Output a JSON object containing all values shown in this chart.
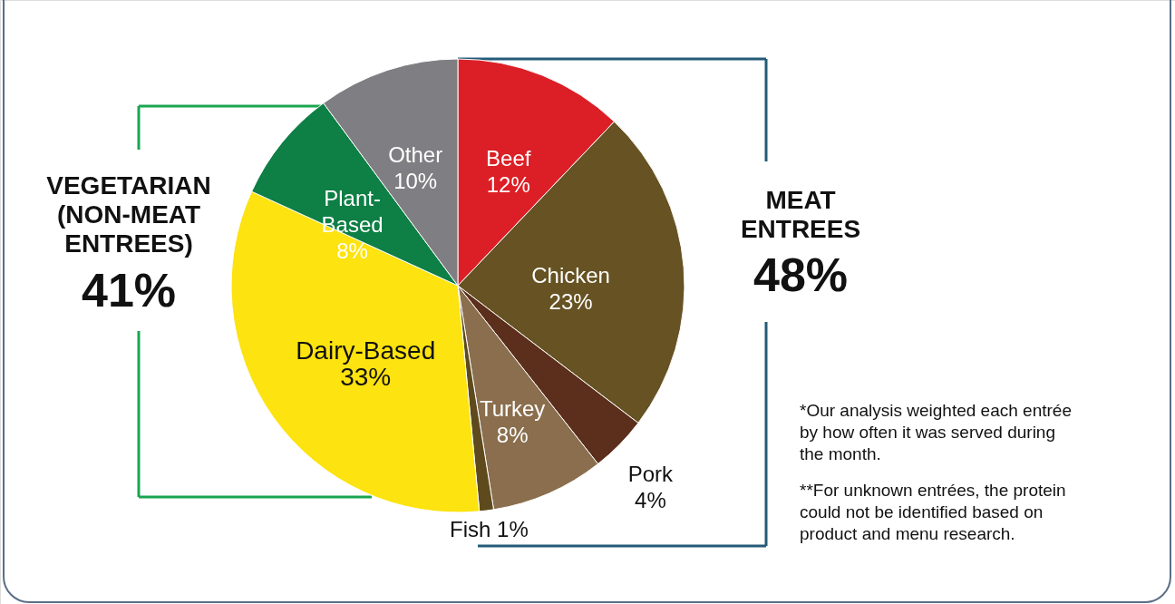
{
  "chart_data": {
    "type": "pie",
    "categories": [
      "Beef",
      "Chicken",
      "Pork",
      "Turkey",
      "Fish",
      "Dairy-Based",
      "Plant-Based",
      "Other"
    ],
    "values": [
      12,
      23,
      4,
      8,
      1,
      33,
      8,
      10
    ],
    "value_labels": [
      "12%",
      "23%",
      "4%",
      "8%",
      "1%",
      "33%",
      "8%",
      "10%"
    ],
    "colors": [
      "#dc1f26",
      "#665222",
      "#5c2f1c",
      "#8a6e4d",
      "#5e4a1c",
      "#fde30f",
      "#0e7f45",
      "#7f7f83"
    ],
    "annotations": [
      "VEGETARIAN (NON-MEAT ENTREES)",
      "41%",
      "MEAT ENTREES",
      "48%",
      "*Our analysis weighted each entrée by how often it was served during the month.",
      "**For unknown entrées, the protein could not be identified based on product and menu research."
    ]
  }
}
